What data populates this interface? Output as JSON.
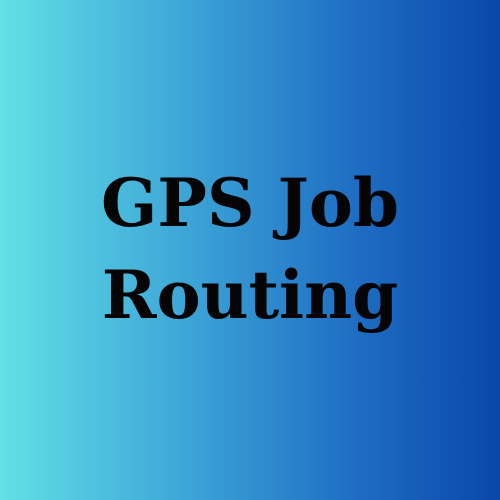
{
  "background": {
    "gradient_start": "#62e0e6",
    "gradient_end": "#0a47a8",
    "direction": "left-to-right"
  },
  "title": {
    "line1": "GPS Job",
    "line2": "Routing",
    "color": "#050505"
  }
}
